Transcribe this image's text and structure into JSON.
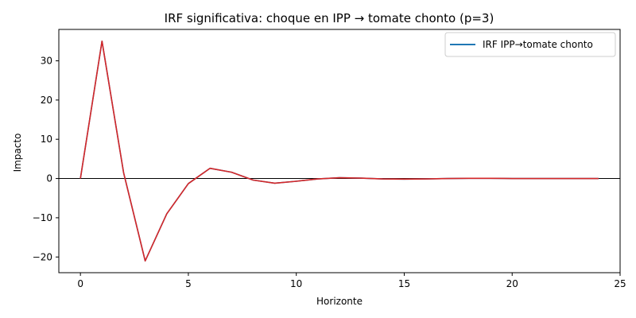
{
  "chart_data": {
    "type": "line",
    "title": "IRF significativa: choque en IPP → tomate chonto (p=3)",
    "xlabel": "Horizonte",
    "ylabel": "Impacto",
    "xlim": [
      -1,
      25
    ],
    "ylim": [
      -24,
      38
    ],
    "xticks": [
      0,
      5,
      10,
      15,
      20,
      25
    ],
    "yticks": [
      -20,
      -10,
      0,
      10,
      20,
      30
    ],
    "zero_line": true,
    "legend": "top-right",
    "x": [
      0,
      1,
      2,
      3,
      4,
      5,
      6,
      7,
      8,
      9,
      10,
      11,
      12,
      13,
      14,
      15,
      16,
      17,
      18,
      19,
      20,
      21,
      22,
      23,
      24
    ],
    "series": [
      {
        "name": "IRF IPP→tomate chonto",
        "color": "#1f77b4",
        "values": [
          0,
          35,
          1.5,
          -21,
          -9,
          -1.3,
          2.6,
          1.6,
          -0.4,
          -1.2,
          -0.7,
          -0.1,
          0.2,
          0.1,
          -0.1,
          -0.15,
          -0.1,
          0,
          0.05,
          0.05,
          0,
          0,
          0,
          0,
          0
        ]
      },
      {
        "color": "#d62728",
        "values": [
          0,
          35,
          1.5,
          -21,
          -9,
          -1.3,
          2.6,
          1.6,
          -0.4,
          -1.2,
          -0.7,
          -0.1,
          0.2,
          0.1,
          -0.1,
          -0.15,
          -0.1,
          0,
          0.05,
          0.05,
          0,
          0,
          0,
          0,
          0
        ]
      }
    ]
  }
}
